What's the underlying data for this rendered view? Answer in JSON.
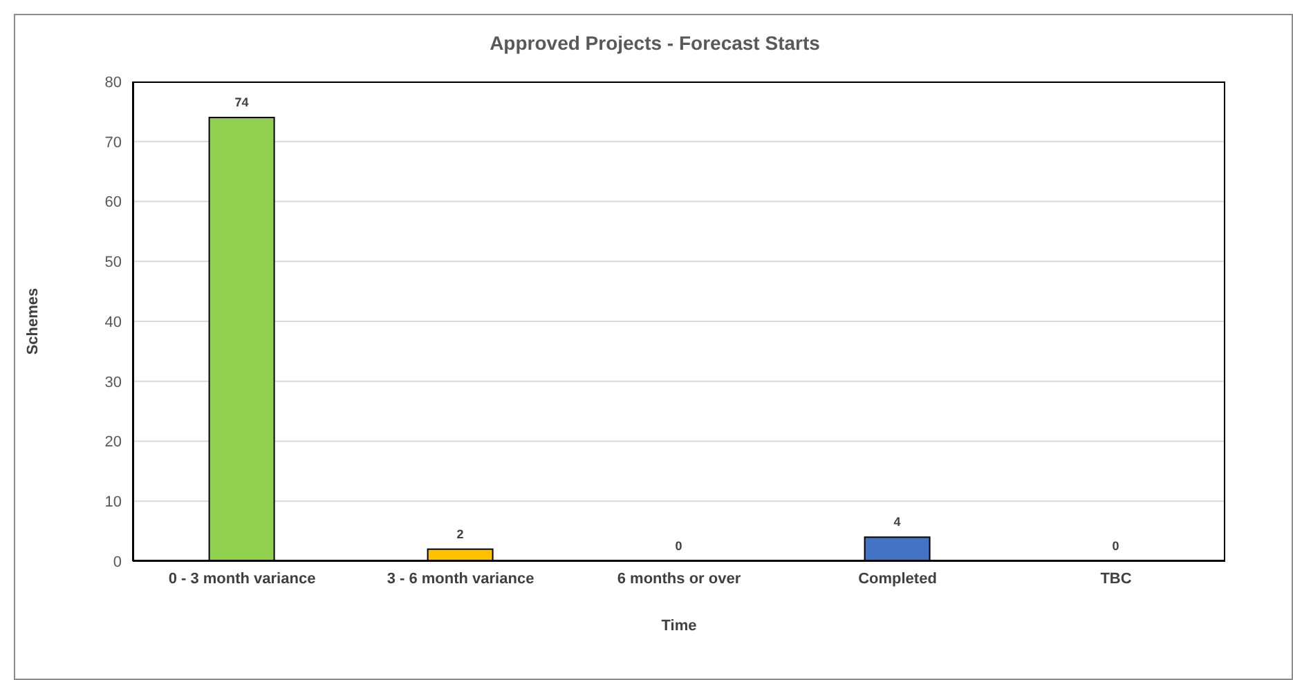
{
  "chart_data": {
    "type": "bar",
    "title": "Approved Projects - Forecast Starts",
    "xlabel": "Time",
    "ylabel": "Schemes",
    "categories": [
      "0 - 3 month variance",
      "3 - 6 month variance",
      "6 months or over",
      "Completed",
      "TBC"
    ],
    "values": [
      74,
      2,
      0,
      4,
      0
    ],
    "colors": [
      "#92d050",
      "#ffc000",
      "#92d050",
      "#4472c4",
      "#92d050"
    ],
    "ylim": [
      0,
      80
    ],
    "yticks": [
      0,
      10,
      20,
      30,
      40,
      50,
      60,
      70,
      80
    ],
    "grid": "y",
    "data_labels": true
  }
}
